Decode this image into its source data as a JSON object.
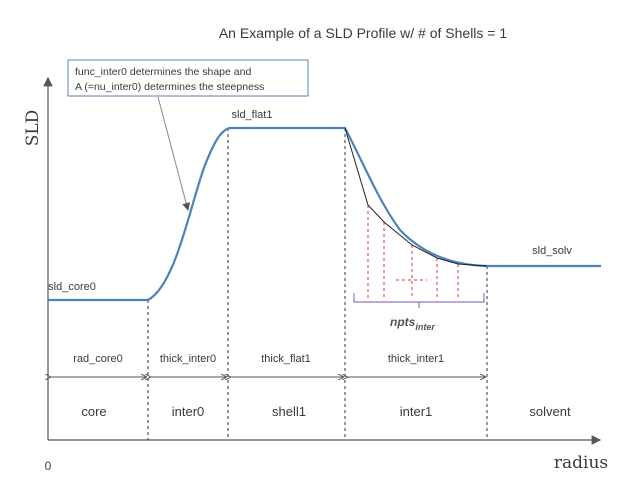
{
  "title": "An Example of a SLD Profile w/ # of Shells = 1",
  "annotation": {
    "line1": "func_inter0 determines the shape and",
    "line2": "A (=nu_inter0) determines the steepness"
  },
  "axes": {
    "ylabel": "SLD",
    "xlabel": "radius",
    "origin_label": "0"
  },
  "levels": {
    "core": "sld_core0",
    "flat": "sld_flat1",
    "solvent": "sld_solv"
  },
  "npts": {
    "main": "npts",
    "sub": "inter"
  },
  "thickness_labels": [
    "rad_core0",
    "thick_inter0",
    "thick_flat1",
    "thick_inter1"
  ],
  "regions": [
    "core",
    "inter0",
    "shell1",
    "inter1",
    "solvent"
  ],
  "colors": {
    "profile": "#4f81bd",
    "dashed": "#e03030",
    "annotation_border": "#5b7fb5",
    "npts_bracket": "#8a7ab8"
  }
}
